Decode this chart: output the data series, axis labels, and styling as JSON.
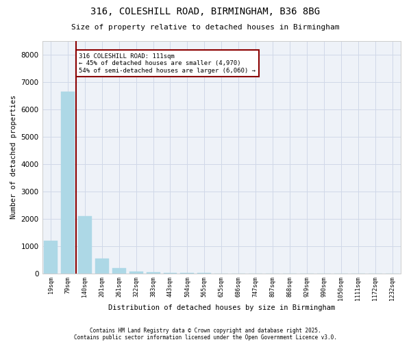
{
  "title_line1": "316, COLESHILL ROAD, BIRMINGHAM, B36 8BG",
  "title_line2": "Size of property relative to detached houses in Birmingham",
  "xlabel": "Distribution of detached houses by size in Birmingham",
  "ylabel": "Number of detached properties",
  "categories": [
    "19sqm",
    "79sqm",
    "140sqm",
    "201sqm",
    "261sqm",
    "322sqm",
    "383sqm",
    "443sqm",
    "504sqm",
    "565sqm",
    "625sqm",
    "686sqm",
    "747sqm",
    "807sqm",
    "868sqm",
    "929sqm",
    "990sqm",
    "1050sqm",
    "1111sqm",
    "1172sqm",
    "1232sqm"
  ],
  "values": [
    1200,
    6650,
    2100,
    550,
    200,
    70,
    30,
    15,
    8,
    4,
    2,
    1,
    1,
    1,
    0,
    0,
    0,
    0,
    0,
    0,
    0
  ],
  "bar_color": "#add8e6",
  "bar_edge_color": "#add8e6",
  "vline_x": 1.5,
  "vline_color": "#8b0000",
  "annotation_text": "316 COLESHILL ROAD: 111sqm\n← 45% of detached houses are smaller (4,970)\n54% of semi-detached houses are larger (6,060) →",
  "annotation_box_color": "white",
  "annotation_box_edge": "#8b0000",
  "ylim": [
    0,
    8500
  ],
  "yticks": [
    0,
    1000,
    2000,
    3000,
    4000,
    5000,
    6000,
    7000,
    8000
  ],
  "grid_color": "#d0d8e8",
  "bg_color": "#eef2f8",
  "footer_line1": "Contains HM Land Registry data © Crown copyright and database right 2025.",
  "footer_line2": "Contains public sector information licensed under the Open Government Licence v3.0."
}
